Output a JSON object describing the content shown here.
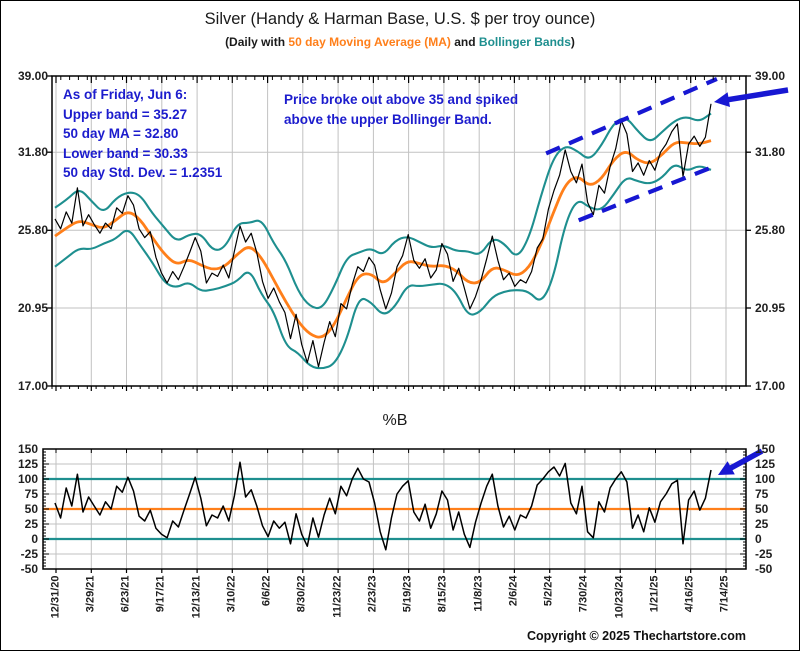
{
  "title": "Silver (Handy & Harman Base, U.S. $ per troy ounce)",
  "subtitle": {
    "prefix": "(Daily with ",
    "ma_label": "50 day Moving Average (MA)",
    "and": " and ",
    "bb_label": "Bollinger Bands",
    "suffix": ")"
  },
  "annotations": {
    "stats": "As of Friday, Jun 6:\nUpper band = 35.27\n50 day MA = 32.80\nLower band = 30.33\n50 day Std. Dev. = 1.2351",
    "breakout": "Price broke out above 35 and spiked\nabove the upper Bollinger Band."
  },
  "colors": {
    "price": "#000000",
    "ma": "#ff7f1a",
    "bands": "#1e8f8f",
    "annotation": "#1c1ccd",
    "arrow": "#1717d2",
    "grid": "#c2c2c2",
    "border": "#000000"
  },
  "copyright": "Copyright © 2025 Thechartstore.com",
  "chart_data": [
    {
      "type": "line",
      "panel": "main",
      "title": "Silver (Handy & Harman Base, U.S. $ per troy ounce)",
      "scale": "log",
      "ylim": [
        17,
        39
      ],
      "y_tick_labels": [
        "39.00",
        "31.80",
        "25.80",
        "20.95",
        "17.00"
      ],
      "y_tick_values": [
        39,
        31.8,
        25.8,
        20.95,
        17
      ],
      "grid_y_values": [
        31.8,
        25.8,
        20.95
      ],
      "x_tick_labels": [
        "12/31/20",
        "3/29/21",
        "6/23/21",
        "9/17/21",
        "12/13/21",
        "3/10/22",
        "6/6/22",
        "8/30/22",
        "11/23/22",
        "2/23/23",
        "5/19/23",
        "8/15/23",
        "11/8/23",
        "2/6/24",
        "5/2/24",
        "7/30/24",
        "10/23/24",
        "1/21/25",
        "4/16/25",
        "7/14/25"
      ],
      "series": [
        {
          "name": "price",
          "color_key": "price",
          "values": [
            26.6,
            25.9,
            27.1,
            26.3,
            28.9,
            26.1,
            26.9,
            26.2,
            25.6,
            26.3,
            25.9,
            27.4,
            27.0,
            28.3,
            27.6,
            25.9,
            25.3,
            25.7,
            24.0,
            23.0,
            22.4,
            23.1,
            22.6,
            23.4,
            24.3,
            25.3,
            24.4,
            22.4,
            23.0,
            22.8,
            23.5,
            22.7,
            24.4,
            26.1,
            25.0,
            25.6,
            24.3,
            22.5,
            21.5,
            22.1,
            21.3,
            20.7,
            19.3,
            20.6,
            19.0,
            18.1,
            19.2,
            17.9,
            19.1,
            20.2,
            19.4,
            21.2,
            20.9,
            22.3,
            23.4,
            23.1,
            24.0,
            23.5,
            22.0,
            20.9,
            21.8,
            23.4,
            24.1,
            25.5,
            23.8,
            23.3,
            23.9,
            22.7,
            23.2,
            24.9,
            24.2,
            22.5,
            23.3,
            22.1,
            20.9,
            21.6,
            22.6,
            23.9,
            25.4,
            23.8,
            22.6,
            23.0,
            22.2,
            22.6,
            22.4,
            23.1,
            24.6,
            25.2,
            27.3,
            28.7,
            29.9,
            32.0,
            30.2,
            29.3,
            30.8,
            27.8,
            26.9,
            29.1,
            28.5,
            30.6,
            32.1,
            34.6,
            33.4,
            30.2,
            30.9,
            29.9,
            31.1,
            30.3,
            31.8,
            32.5,
            33.6,
            34.3,
            29.8,
            32.5,
            33.2,
            32.3,
            33.1,
            36.2
          ]
        },
        {
          "name": "50 day MA",
          "color_key": "ma",
          "values": [
            25.4,
            26.0,
            26.5,
            26.2,
            25.9,
            26.5,
            27.2,
            26.6,
            25.3,
            24.2,
            23.5,
            23.9,
            23.5,
            23.2,
            23.4,
            24.2,
            24.8,
            24.0,
            22.6,
            21.3,
            20.2,
            19.5,
            19.3,
            20.0,
            21.5,
            22.9,
            23.0,
            22.3,
            23.0,
            23.8,
            23.6,
            23.4,
            23.5,
            23.2,
            22.4,
            22.4,
            23.4,
            23.2,
            22.8,
            23.3,
            24.8,
            27.0,
            29.2,
            29.9,
            29.0,
            29.6,
            31.2,
            32.0,
            31.1,
            30.8,
            31.6,
            32.7,
            32.6,
            32.5,
            32.8
          ]
        },
        {
          "name": "upper band",
          "color_key": "bands",
          "values": [
            27.4,
            28.0,
            28.9,
            27.9,
            27.0,
            28.1,
            28.6,
            28.4,
            27.0,
            26.0,
            25.0,
            25.5,
            25.6,
            24.4,
            24.6,
            26.3,
            26.3,
            26.6,
            24.9,
            23.8,
            21.9,
            21.0,
            20.9,
            22.2,
            24.0,
            24.3,
            24.6,
            24.1,
            25.1,
            25.4,
            25.0,
            24.6,
            24.8,
            24.4,
            24.4,
            24.1,
            25.3,
            24.9,
            23.9,
            25.2,
            28.3,
            31.3,
            32.4,
            31.9,
            31.1,
            32.4,
            34.4,
            35.0,
            33.6,
            32.6,
            33.6,
            34.6,
            35.0,
            34.5,
            35.27
          ]
        },
        {
          "name": "lower band",
          "color_key": "bands",
          "values": [
            23.4,
            24.0,
            24.6,
            24.5,
            24.9,
            25.2,
            26.0,
            24.8,
            23.7,
            22.4,
            22.1,
            22.5,
            21.9,
            22.0,
            22.2,
            22.5,
            23.3,
            21.7,
            20.8,
            18.9,
            18.6,
            17.9,
            17.8,
            18.0,
            19.2,
            21.6,
            21.3,
            20.5,
            21.0,
            22.3,
            22.2,
            22.3,
            22.4,
            21.9,
            20.5,
            20.7,
            21.6,
            21.9,
            22.0,
            21.9,
            21.2,
            22.6,
            26.3,
            28.1,
            27.4,
            27.2,
            28.4,
            29.8,
            29.4,
            29.2,
            29.7,
            30.9,
            30.2,
            30.7,
            30.33
          ]
        }
      ],
      "trend_channel": {
        "upper": {
          "x1": 0.712,
          "v1": 31.7,
          "x2": 0.958,
          "v2": 38.7
        },
        "lower": {
          "x1": 0.759,
          "v1": 26.5,
          "x2": 0.958,
          "v2": 30.7
        }
      },
      "arrow": {
        "tip": [
          713,
          101
        ],
        "tail": [
          787,
          89
        ]
      }
    },
    {
      "type": "line",
      "panel": "pct_b",
      "title": "%B",
      "scale": "linear",
      "ylim": [
        -50,
        150
      ],
      "y_tick_labels": [
        "150",
        "125",
        "100",
        "75",
        "50",
        "25",
        "0",
        "-25",
        "-50"
      ],
      "y_tick_values": [
        150,
        125,
        100,
        75,
        50,
        25,
        0,
        -25,
        -50
      ],
      "grid_y_values": [
        125,
        75,
        25,
        -25
      ],
      "hlines": [
        {
          "value": 100,
          "color_key": "bands"
        },
        {
          "value": 50,
          "color_key": "ma"
        },
        {
          "value": 0,
          "color_key": "bands"
        }
      ],
      "series": [
        {
          "name": "%B",
          "color_key": "price",
          "values": [
            60,
            35,
            85,
            55,
            108,
            45,
            70,
            55,
            40,
            62,
            50,
            88,
            78,
            103,
            80,
            38,
            30,
            48,
            18,
            8,
            2,
            30,
            20,
            48,
            75,
            103,
            68,
            22,
            40,
            35,
            55,
            30,
            72,
            128,
            70,
            82,
            55,
            22,
            4,
            30,
            18,
            28,
            -8,
            42,
            8,
            -12,
            35,
            3,
            40,
            68,
            42,
            88,
            72,
            100,
            118,
            100,
            95,
            60,
            12,
            -18,
            35,
            75,
            88,
            97,
            45,
            30,
            58,
            18,
            42,
            80,
            65,
            15,
            45,
            8,
            -14,
            28,
            60,
            88,
            108,
            55,
            20,
            38,
            15,
            40,
            35,
            55,
            90,
            100,
            112,
            120,
            105,
            126,
            60,
            42,
            88,
            12,
            2,
            62,
            45,
            85,
            100,
            112,
            95,
            18,
            40,
            12,
            52,
            28,
            62,
            75,
            92,
            98,
            -8,
            65,
            80,
            48,
            68,
            115
          ]
        }
      ],
      "arrow": {
        "tip": [
          717,
          474
        ],
        "tail": [
          761,
          450
        ]
      }
    }
  ]
}
